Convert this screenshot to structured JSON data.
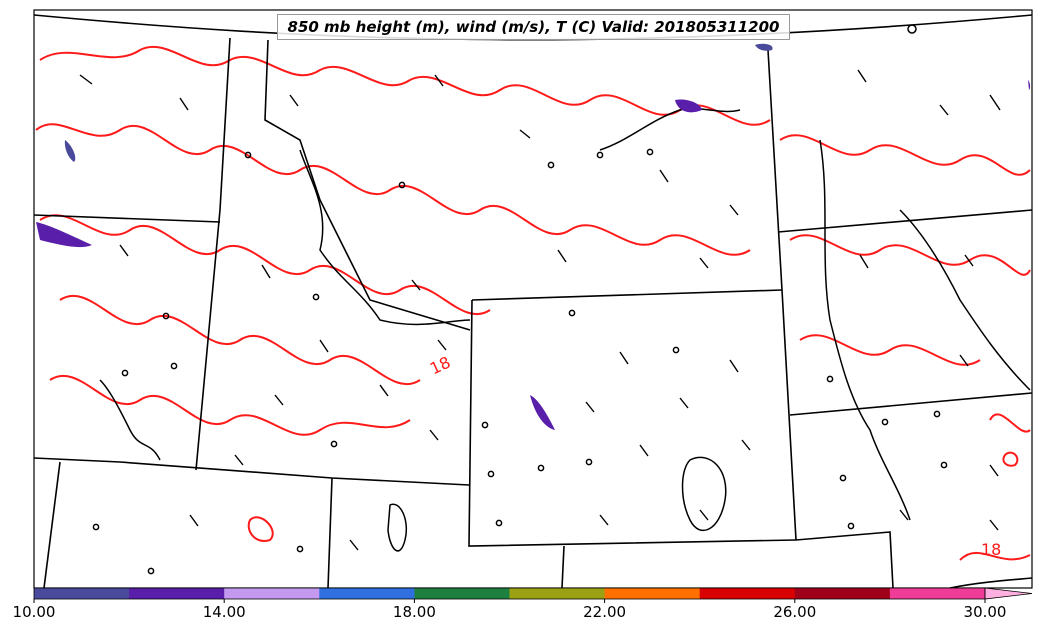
{
  "title": "850 mb height (m), wind (m/s), T (C) Valid: 201805311200",
  "contour_labels": [
    "18",
    "18"
  ],
  "colorbar": {
    "ticks": [
      "10.00",
      "14.00",
      "18.00",
      "22.00",
      "26.00",
      "30.00"
    ],
    "colors": [
      "#4a4a9c",
      "#5a1faa",
      "#c49af0",
      "#2f6fe0",
      "#1e8040",
      "#9aa214",
      "#ff7000",
      "#d80000",
      "#a0001a",
      "#ef3c98",
      "#ffb0e0"
    ]
  },
  "colors": {
    "temperature_contour": "#ff0000",
    "boundaries": "#000000"
  }
}
